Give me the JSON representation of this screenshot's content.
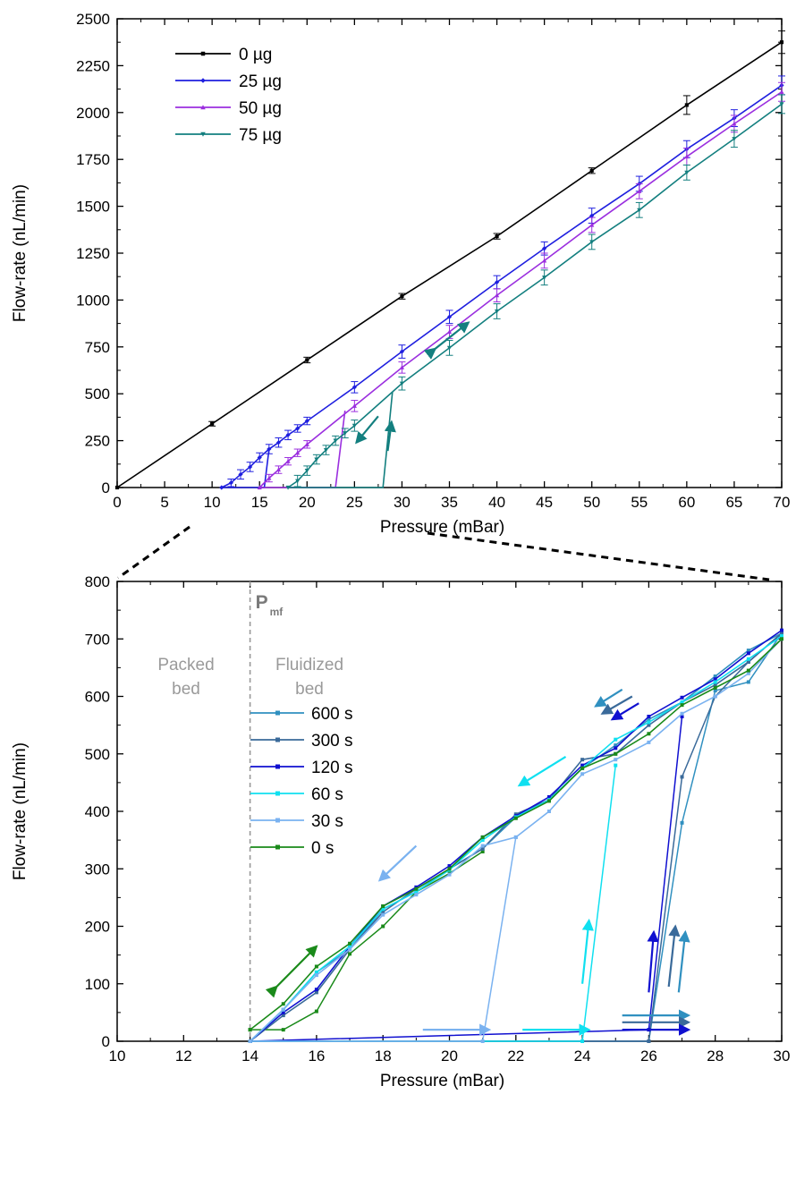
{
  "chart_data": [
    {
      "type": "line",
      "xlabel": "Pressure (mBar)",
      "ylabel": "Flow-rate (nL/min)",
      "xlim": [
        0,
        70
      ],
      "ylim": [
        0,
        2500
      ],
      "xticks": [
        0,
        5,
        10,
        15,
        20,
        25,
        30,
        35,
        40,
        45,
        50,
        55,
        60,
        65,
        70
      ],
      "yticks": [
        0,
        250,
        500,
        750,
        1000,
        1250,
        1500,
        1750,
        2000,
        2250,
        2500
      ],
      "grid": false,
      "legend_position": "top-left",
      "series": [
        {
          "name": "0 µg",
          "color": "#000000",
          "marker": "square",
          "x": [
            0,
            10,
            20,
            30,
            40,
            50,
            60,
            70
          ],
          "y": [
            0,
            340,
            680,
            1020,
            1340,
            1690,
            2040,
            2375
          ],
          "err": [
            0,
            12,
            15,
            15,
            15,
            15,
            50,
            60
          ]
        },
        {
          "name": "25 µg",
          "color": "#1f1fdf",
          "marker": "diamond",
          "x": [
            11,
            12,
            13,
            14,
            15,
            16,
            17,
            18,
            19,
            20,
            25,
            30,
            35,
            40,
            45,
            50,
            55,
            60,
            65,
            70
          ],
          "y": [
            0,
            25,
            70,
            110,
            160,
            205,
            240,
            280,
            315,
            355,
            535,
            725,
            910,
            1095,
            1275,
            1450,
            1620,
            1805,
            1970,
            2145
          ],
          "err": [
            0,
            20,
            25,
            25,
            25,
            25,
            25,
            25,
            20,
            20,
            30,
            35,
            35,
            35,
            35,
            40,
            40,
            45,
            45,
            50
          ]
        },
        {
          "name": "50 µg",
          "color": "#9b2fdf",
          "marker": "triangle-up",
          "x": [
            15,
            16,
            17,
            18,
            19,
            20,
            25,
            30,
            35,
            40,
            45,
            50,
            55,
            60,
            65,
            70
          ],
          "y": [
            0,
            50,
            95,
            140,
            185,
            230,
            435,
            640,
            830,
            1025,
            1210,
            1400,
            1580,
            1765,
            1940,
            2110
          ],
          "err": [
            0,
            20,
            20,
            20,
            20,
            20,
            30,
            30,
            35,
            35,
            40,
            40,
            40,
            45,
            45,
            50
          ]
        },
        {
          "name": "75 µg",
          "color": "#137f7f",
          "marker": "triangle-down",
          "x": [
            18,
            19,
            20,
            21,
            22,
            23,
            24,
            25,
            30,
            35,
            40,
            45,
            50,
            55,
            60,
            65,
            70
          ],
          "y": [
            0,
            35,
            90,
            150,
            200,
            250,
            290,
            330,
            555,
            745,
            940,
            1120,
            1310,
            1480,
            1680,
            1860,
            2045
          ],
          "err": [
            0,
            30,
            25,
            25,
            25,
            25,
            25,
            30,
            35,
            40,
            40,
            40,
            40,
            40,
            40,
            45,
            50
          ]
        }
      ],
      "hysteresis_branches": [
        {
          "series": "25 µg",
          "x": [
            11,
            15.5,
            16
          ],
          "y": [
            0,
            0,
            205
          ]
        },
        {
          "series": "50 µg",
          "x": [
            15,
            23,
            24
          ],
          "y": [
            0,
            0,
            410
          ]
        },
        {
          "series": "75 µg",
          "x": [
            18,
            28,
            29
          ],
          "y": [
            0,
            0,
            510
          ]
        }
      ]
    },
    {
      "type": "line",
      "xlabel": "Pressure (mBar)",
      "ylabel": "Flow-rate (nL/min)",
      "xlim": [
        10,
        30
      ],
      "ylim": [
        0,
        800
      ],
      "xticks": [
        10,
        12,
        14,
        16,
        18,
        20,
        22,
        24,
        26,
        28,
        30
      ],
      "yticks": [
        0,
        100,
        200,
        300,
        400,
        500,
        600,
        700,
        800
      ],
      "grid": false,
      "legend_position": "top-left",
      "vline": {
        "x": 14,
        "label": "P",
        "label_sub": "mf",
        "color": "#999999"
      },
      "region_labels": [
        {
          "line1": "Packed",
          "line2": "bed"
        },
        {
          "line1": "Fluidized",
          "line2": "bed"
        }
      ],
      "series": [
        {
          "name": "600 s",
          "color": "#3090c0",
          "x": [
            14,
            15,
            16,
            17,
            18,
            19,
            20,
            21,
            22,
            23,
            24,
            25,
            26,
            27,
            28,
            29,
            30
          ],
          "y": [
            0,
            55,
            120,
            160,
            230,
            260,
            300,
            335,
            390,
            420,
            475,
            515,
            560,
            590,
            635,
            680,
            710
          ],
          "loading": {
            "x": [
              14,
              26,
              27,
              28,
              29,
              30
            ],
            "y": [
              0,
              0,
              380,
              610,
              625,
              710
            ]
          }
        },
        {
          "name": "300 s",
          "color": "#3a6a9a",
          "x": [
            14,
            15,
            16,
            17,
            18,
            19,
            20,
            21,
            22,
            23,
            24,
            25,
            26,
            27,
            28,
            29,
            30
          ],
          "y": [
            0,
            45,
            85,
            160,
            225,
            265,
            300,
            335,
            395,
            420,
            490,
            500,
            550,
            590,
            620,
            660,
            710
          ],
          "loading": {
            "x": [
              14,
              26,
              27,
              28,
              29,
              30
            ],
            "y": [
              0,
              0,
              460,
              600,
              660,
              710
            ]
          }
        },
        {
          "name": "120 s",
          "color": "#1010d0",
          "x": [
            14,
            15,
            16,
            17,
            18,
            19,
            20,
            21,
            22,
            23,
            24,
            25,
            26,
            27,
            28,
            29,
            30
          ],
          "y": [
            0,
            50,
            90,
            165,
            235,
            268,
            305,
            355,
            392,
            425,
            480,
            510,
            565,
            598,
            630,
            675,
            715
          ],
          "loading": {
            "x": [
              14,
              26,
              27
            ],
            "y": [
              0,
              20,
              565
            ]
          }
        },
        {
          "name": "60 s",
          "color": "#10e0f0",
          "x": [
            14,
            15,
            16,
            17,
            18,
            19,
            20,
            21,
            22,
            23,
            24,
            25,
            26,
            27,
            28,
            29,
            30
          ],
          "y": [
            0,
            55,
            120,
            165,
            230,
            260,
            298,
            350,
            390,
            420,
            475,
            525,
            555,
            590,
            625,
            665,
            705
          ],
          "loading": {
            "x": [
              14,
              24,
              25
            ],
            "y": [
              0,
              0,
              480
            ]
          }
        },
        {
          "name": "30 s",
          "color": "#7ab2f0",
          "x": [
            14,
            15,
            16,
            17,
            18,
            19,
            20,
            21,
            22,
            23,
            24,
            25,
            26,
            27,
            28,
            29,
            30
          ],
          "y": [
            0,
            55,
            115,
            160,
            220,
            255,
            290,
            340,
            355,
            400,
            465,
            490,
            520,
            570,
            600,
            640,
            700
          ],
          "loading": {
            "x": [
              14,
              21,
              22
            ],
            "y": [
              0,
              0,
              355
            ]
          }
        },
        {
          "name": "0 s",
          "color": "#1a8a1a",
          "x": [
            14,
            15,
            16,
            17,
            18,
            19,
            20,
            21,
            22,
            23,
            24,
            25,
            26,
            27,
            28,
            29,
            30
          ],
          "y": [
            20,
            65,
            130,
            170,
            235,
            265,
            300,
            355,
            388,
            418,
            475,
            500,
            535,
            585,
            615,
            645,
            700
          ],
          "loading": {
            "x": [
              14,
              15,
              16,
              17,
              18,
              19,
              20,
              21
            ],
            "y": [
              20,
              20,
              52,
              152,
              200,
              260,
              292,
              330
            ]
          }
        }
      ]
    }
  ]
}
